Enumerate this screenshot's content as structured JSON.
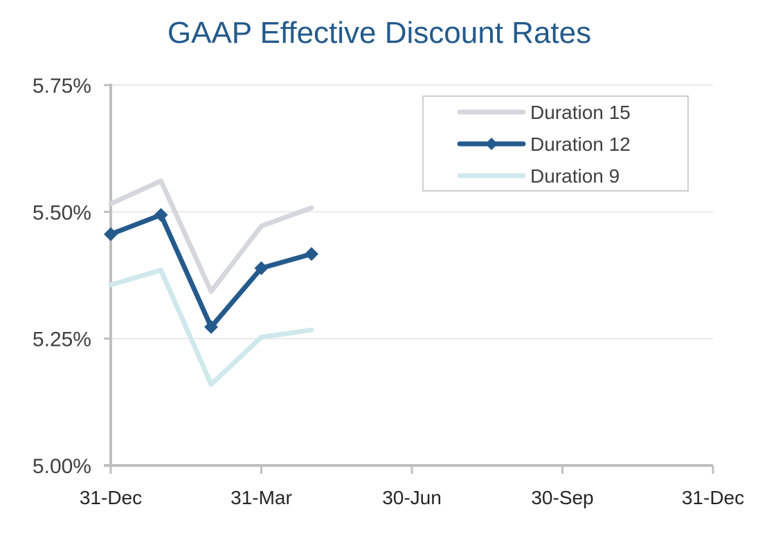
{
  "chart_data": {
    "type": "line",
    "title": "GAAP Effective Discount Rates",
    "xlabel": "",
    "ylabel": "",
    "x_ticks": [
      "31-Dec",
      "31-Mar",
      "30-Jun",
      "30-Sep",
      "31-Dec"
    ],
    "x_range_months": [
      0,
      12
    ],
    "y_ticks": [
      "5.00%",
      "5.25%",
      "5.50%",
      "5.75%"
    ],
    "ylim": [
      5.0,
      5.75
    ],
    "y_unit": "%",
    "grid": true,
    "legend_position": "top-right",
    "series": [
      {
        "name": "Duration 15",
        "color": "#d5d7dc",
        "marker": "none",
        "points": [
          {
            "x": 0,
            "y": 5.516
          },
          {
            "x": 1,
            "y": 5.561
          },
          {
            "x": 2,
            "y": 5.343
          },
          {
            "x": 3,
            "y": 5.472
          },
          {
            "x": 4,
            "y": 5.508
          }
        ]
      },
      {
        "name": "Duration 12",
        "color": "#245a8c",
        "marker": "diamond",
        "points": [
          {
            "x": 0,
            "y": 5.456
          },
          {
            "x": 1,
            "y": 5.494
          },
          {
            "x": 2,
            "y": 5.273
          },
          {
            "x": 3,
            "y": 5.389
          },
          {
            "x": 4,
            "y": 5.417
          }
        ]
      },
      {
        "name": "Duration 9",
        "color": "#cfe8ec",
        "marker": "none",
        "points": [
          {
            "x": 0,
            "y": 5.356
          },
          {
            "x": 1,
            "y": 5.385
          },
          {
            "x": 2,
            "y": 5.16
          },
          {
            "x": 3,
            "y": 5.253
          },
          {
            "x": 4,
            "y": 5.267
          }
        ]
      }
    ],
    "colors": {
      "title": "#245a8c",
      "axis": "#bfbfbf",
      "gridline": "#e3e3e3",
      "legend_border": "#bfbfbf"
    }
  }
}
